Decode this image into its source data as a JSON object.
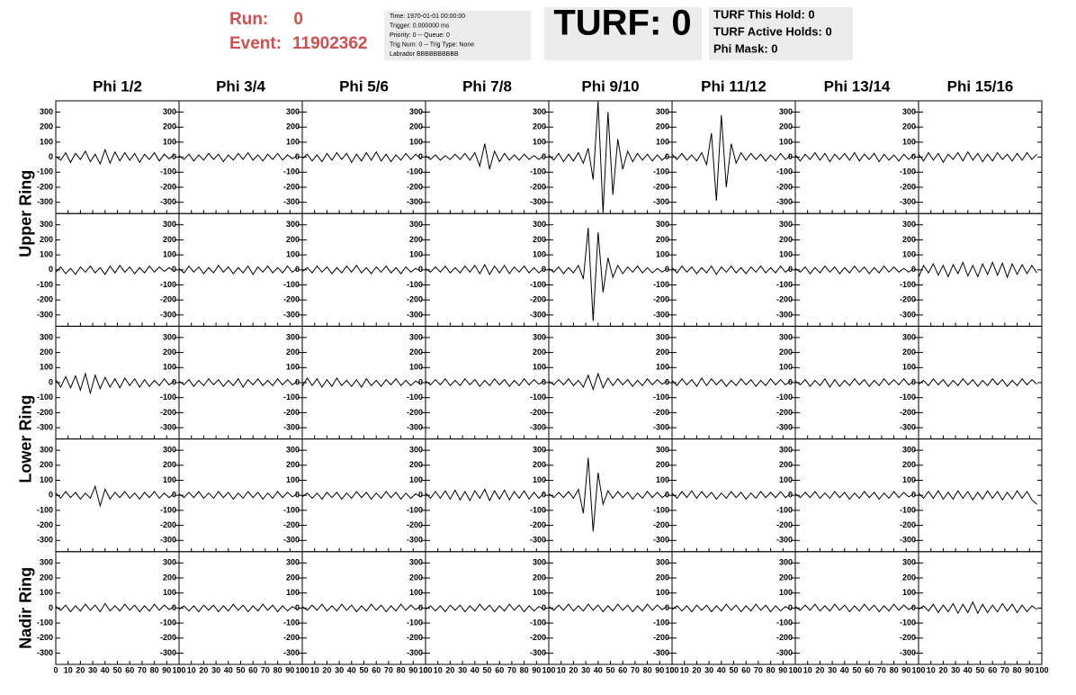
{
  "header": {
    "run_label": "Run:",
    "run": 0,
    "event_label": "Event:",
    "event": 11902362,
    "info": [
      "Time: 1970-01-01 00:00:00",
      "Trigger: 0.000000 ms",
      "Priority: 0 -- Queue: 0",
      "Trig Num: 0 -- Trig Type: None",
      "Labrador BBBBBBBBBB"
    ],
    "turf": "TURF: 0",
    "turf_stats": [
      "TURF This Hold: 0",
      "TURF Active Holds: 0",
      "Phi Mask: 0"
    ]
  },
  "chart_data": {
    "type": "line",
    "color": "#000000",
    "columns": [
      "Phi 1/2",
      "Phi 3/4",
      "Phi 5/6",
      "Phi 7/8",
      "Phi 9/10",
      "Phi 11/12",
      "Phi 13/14",
      "Phi 15/16"
    ],
    "rows": [
      "Upper Ring",
      "Lower Ring",
      "Nadir Ring"
    ],
    "xlim": [
      0,
      100
    ],
    "xticks": [
      0,
      10,
      20,
      30,
      40,
      50,
      60,
      70,
      80,
      90,
      100
    ],
    "ylim": [
      -375,
      375
    ],
    "yticks": [
      -300,
      -200,
      -100,
      0,
      100,
      200,
      300
    ],
    "x": [
      0,
      4,
      8,
      12,
      16,
      20,
      24,
      28,
      32,
      36,
      40,
      44,
      48,
      52,
      56,
      60,
      64,
      68,
      72,
      76,
      80,
      84,
      88,
      92,
      96
    ],
    "panels": [
      [
        [
          5,
          -20,
          30,
          -35,
          25,
          -15,
          40,
          -30,
          20,
          -45,
          50,
          -40,
          35,
          -25,
          30,
          -20,
          25,
          -35,
          20,
          -15,
          30,
          -25,
          20,
          -10,
          15
        ],
        [
          10,
          -15,
          20,
          -25,
          15,
          -20,
          25,
          -15,
          20,
          -30,
          15,
          -20,
          25,
          -15,
          30,
          -20,
          15,
          -25,
          20,
          -15,
          25,
          -20,
          15,
          -10,
          10
        ],
        [
          -10,
          20,
          -25,
          15,
          -30,
          25,
          -20,
          30,
          -15,
          25,
          -35,
          20,
          -25,
          30,
          -20,
          35,
          -25,
          20,
          -30,
          15,
          -20,
          25,
          -15,
          20,
          -10
        ],
        [
          10,
          -15,
          15,
          -20,
          10,
          -15,
          20,
          -15,
          25,
          -20,
          30,
          -60,
          90,
          -80,
          40,
          -30,
          25,
          -20,
          15,
          -20,
          20,
          -15,
          10,
          -15,
          10
        ],
        [
          15,
          -20,
          25,
          -30,
          20,
          -25,
          30,
          -40,
          60,
          -150,
          370,
          -370,
          300,
          -250,
          120,
          -80,
          40,
          -30,
          25,
          -20,
          20,
          -25,
          15,
          -20,
          10
        ],
        [
          20,
          -15,
          25,
          -20,
          15,
          -25,
          30,
          -50,
          160,
          -290,
          280,
          -200,
          90,
          -40,
          30,
          -20,
          25,
          -15,
          20,
          -25,
          15,
          -20,
          25,
          -15,
          10
        ],
        [
          15,
          -25,
          20,
          -15,
          30,
          -20,
          25,
          -30,
          20,
          -15,
          25,
          -20,
          30,
          -25,
          20,
          -15,
          25,
          -30,
          20,
          -20,
          15,
          -25,
          20,
          -15,
          15
        ],
        [
          20,
          -25,
          30,
          -20,
          25,
          -35,
          20,
          -15,
          30,
          -25,
          35,
          -20,
          25,
          -30,
          20,
          -25,
          30,
          -15,
          20,
          -25,
          25,
          -20,
          30,
          -15,
          20
        ]
      ],
      [
        [
          -15,
          20,
          -25,
          10,
          -30,
          20,
          -15,
          25,
          -20,
          15,
          -30,
          25,
          -20,
          30,
          -15,
          20,
          -25,
          15,
          -20,
          25,
          -15,
          20,
          -10,
          15,
          -10
        ],
        [
          10,
          -20,
          25,
          -15,
          20,
          -25,
          15,
          -20,
          30,
          -15,
          20,
          -25,
          15,
          -20,
          25,
          -30,
          20,
          -15,
          25,
          -20,
          15,
          -20,
          25,
          -15,
          10
        ],
        [
          -10,
          15,
          -20,
          25,
          -15,
          20,
          -25,
          15,
          -20,
          25,
          -15,
          30,
          -20,
          15,
          -25,
          20,
          -15,
          25,
          -20,
          15,
          -25,
          20,
          -15,
          10,
          -10
        ],
        [
          10,
          -15,
          20,
          -15,
          25,
          -20,
          15,
          -20,
          25,
          -15,
          30,
          -25,
          35,
          -30,
          25,
          -20,
          30,
          -25,
          20,
          -15,
          25,
          -20,
          15,
          -20,
          10
        ],
        [
          10,
          -15,
          20,
          -25,
          15,
          -20,
          30,
          -60,
          280,
          -340,
          250,
          -150,
          80,
          -50,
          30,
          -25,
          20,
          -15,
          25,
          -20,
          15,
          -20,
          10,
          -15,
          10
        ],
        [
          15,
          -20,
          25,
          -15,
          20,
          -25,
          15,
          -20,
          25,
          -30,
          20,
          -15,
          25,
          -20,
          15,
          -25,
          20,
          -15,
          25,
          -20,
          15,
          -20,
          25,
          -15,
          10
        ],
        [
          10,
          -15,
          20,
          -25,
          15,
          -20,
          25,
          -15,
          20,
          -25,
          15,
          -20,
          25,
          -15,
          20,
          -25,
          15,
          -20,
          25,
          -15,
          20,
          -15,
          10,
          -15,
          10
        ],
        [
          -50,
          30,
          -20,
          40,
          -35,
          30,
          -45,
          35,
          -25,
          50,
          -40,
          30,
          -45,
          40,
          -30,
          50,
          -35,
          45,
          -50,
          40,
          -30,
          35,
          -25,
          30,
          -20
        ]
      ],
      [
        [
          20,
          -30,
          40,
          -35,
          45,
          -50,
          60,
          -70,
          50,
          -40,
          35,
          -30,
          25,
          -35,
          30,
          -20,
          25,
          -30,
          20,
          -25,
          15,
          -20,
          25,
          -15,
          10
        ],
        [
          10,
          -15,
          20,
          -25,
          15,
          -20,
          25,
          -15,
          20,
          -25,
          15,
          -20,
          25,
          -30,
          20,
          -15,
          25,
          -20,
          15,
          -20,
          25,
          -15,
          20,
          -15,
          10
        ],
        [
          -25,
          30,
          -20,
          25,
          -30,
          20,
          -25,
          30,
          -20,
          15,
          -25,
          20,
          -30,
          25,
          -20,
          15,
          -25,
          20,
          -15,
          25,
          -20,
          15,
          -20,
          10,
          -10
        ],
        [
          10,
          -15,
          20,
          -15,
          25,
          -20,
          15,
          -20,
          25,
          -15,
          20,
          -25,
          15,
          -20,
          25,
          -15,
          20,
          -25,
          15,
          -20,
          25,
          -15,
          20,
          -10,
          10
        ],
        [
          10,
          -15,
          20,
          -15,
          25,
          -20,
          15,
          -30,
          50,
          -45,
          60,
          -35,
          30,
          -20,
          25,
          -15,
          20,
          -25,
          15,
          -20,
          25,
          -15,
          20,
          -10,
          10
        ],
        [
          15,
          -20,
          25,
          -15,
          20,
          -25,
          30,
          -20,
          25,
          -15,
          20,
          -25,
          15,
          -20,
          25,
          -15,
          20,
          -25,
          15,
          -20,
          25,
          -15,
          20,
          -15,
          10
        ],
        [
          10,
          -15,
          20,
          -25,
          15,
          -20,
          25,
          -30,
          20,
          -25,
          15,
          -20,
          25,
          -15,
          20,
          -25,
          15,
          -20,
          25,
          -15,
          20,
          -15,
          25,
          -15,
          10
        ],
        [
          -10,
          15,
          -20,
          25,
          -15,
          20,
          -25,
          15,
          -20,
          25,
          -15,
          20,
          -25,
          15,
          -20,
          25,
          -15,
          20,
          -25,
          15,
          -20,
          25,
          -15,
          20,
          -10
        ]
      ],
      [
        [
          15,
          -20,
          25,
          -15,
          20,
          -25,
          15,
          -20,
          60,
          -70,
          40,
          -25,
          20,
          -15,
          25,
          -20,
          15,
          -25,
          20,
          -15,
          25,
          -20,
          15,
          -15,
          10
        ],
        [
          10,
          -15,
          20,
          -15,
          25,
          -20,
          15,
          -20,
          25,
          -15,
          20,
          -25,
          15,
          -20,
          25,
          -15,
          20,
          -25,
          15,
          -20,
          25,
          -15,
          20,
          -10,
          10
        ],
        [
          -10,
          15,
          -20,
          15,
          -25,
          20,
          -15,
          20,
          -25,
          15,
          -20,
          25,
          -15,
          20,
          -25,
          15,
          -20,
          25,
          -15,
          20,
          -25,
          15,
          -20,
          10,
          -10
        ],
        [
          15,
          -20,
          25,
          -20,
          30,
          -25,
          35,
          -30,
          25,
          -35,
          30,
          -20,
          40,
          -35,
          30,
          -25,
          35,
          -30,
          25,
          -20,
          30,
          -25,
          20,
          -20,
          15
        ],
        [
          10,
          -15,
          20,
          -15,
          25,
          -20,
          40,
          -120,
          250,
          -240,
          150,
          -60,
          30,
          -20,
          25,
          -15,
          20,
          -25,
          15,
          -20,
          25,
          -15,
          20,
          -15,
          10
        ],
        [
          15,
          -20,
          25,
          -15,
          30,
          -20,
          25,
          -15,
          20,
          -25,
          15,
          -20,
          25,
          -15,
          20,
          -25,
          15,
          -20,
          25,
          -15,
          20,
          -15,
          25,
          -15,
          10
        ],
        [
          10,
          -15,
          20,
          -15,
          25,
          -20,
          15,
          -20,
          25,
          -15,
          20,
          -25,
          15,
          -20,
          25,
          -15,
          20,
          -25,
          15,
          -20,
          25,
          -15,
          20,
          -10,
          10
        ],
        [
          15,
          -20,
          25,
          -20,
          30,
          -25,
          20,
          -25,
          30,
          -20,
          25,
          -30,
          20,
          -25,
          30,
          -20,
          25,
          -30,
          20,
          -25,
          30,
          -20,
          25,
          -30,
          -60
        ]
      ],
      [
        [
          10,
          -15,
          20,
          -25,
          15,
          -20,
          25,
          -15,
          20,
          -25,
          30,
          -20,
          15,
          -20,
          25,
          -15,
          20,
          -25,
          15,
          -20,
          25,
          -15,
          20,
          -10,
          10
        ],
        [
          -10,
          15,
          -20,
          15,
          -25,
          20,
          -15,
          20,
          -25,
          15,
          -20,
          25,
          -15,
          20,
          -25,
          15,
          -20,
          25,
          -15,
          20,
          -25,
          15,
          -20,
          10,
          -10
        ],
        [
          10,
          -15,
          20,
          -15,
          25,
          -20,
          15,
          -20,
          25,
          -15,
          20,
          -25,
          15,
          -20,
          25,
          -15,
          20,
          -25,
          15,
          -20,
          25,
          -15,
          20,
          -10,
          10
        ],
        [
          -10,
          15,
          -20,
          15,
          -25,
          20,
          -15,
          20,
          -25,
          15,
          -20,
          25,
          -15,
          20,
          -25,
          15,
          -20,
          25,
          -15,
          20,
          -25,
          15,
          -20,
          10,
          -10
        ],
        [
          10,
          -15,
          20,
          -15,
          25,
          -20,
          15,
          -20,
          25,
          -15,
          20,
          -25,
          15,
          -20,
          25,
          -15,
          20,
          -25,
          15,
          -20,
          25,
          -15,
          20,
          -10,
          10
        ],
        [
          -10,
          15,
          -20,
          15,
          -25,
          20,
          -15,
          20,
          -25,
          15,
          -20,
          25,
          -15,
          20,
          -25,
          15,
          -20,
          25,
          -15,
          20,
          -25,
          15,
          -20,
          10,
          -10
        ],
        [
          10,
          -15,
          20,
          -15,
          25,
          -20,
          15,
          -20,
          25,
          -15,
          20,
          -25,
          15,
          -20,
          25,
          -15,
          20,
          -25,
          15,
          -20,
          25,
          -15,
          20,
          -10,
          10
        ],
        [
          -10,
          15,
          -20,
          25,
          -30,
          20,
          -25,
          30,
          -35,
          25,
          -30,
          40,
          -35,
          25,
          -30,
          20,
          -25,
          30,
          -20,
          25,
          -30,
          20,
          -25,
          15,
          -10
        ]
      ]
    ]
  }
}
